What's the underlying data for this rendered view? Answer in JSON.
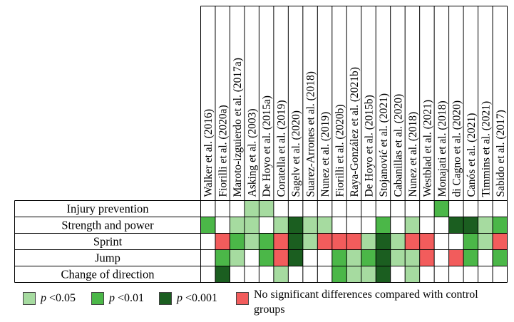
{
  "colors": {
    "p05": "#a6dba0",
    "p01": "#4bb748",
    "p001": "#1b5e20",
    "ns": "#f25c5c",
    "none": "#ffffff"
  },
  "studies": [
    "Walker et al. (2016)",
    "Fiorilli et al. (2020a)",
    "Maroto-izguierdo et al. (2017a)",
    "Asking et al. (2003)",
    "De Hoyo et al. (2015a)",
    "Coratella et al. (2019)",
    "Sagelv et al. (2020)",
    "Suarez-Arrones et al. (2018)",
    "Nunez et al. (2019)",
    "Fiorilli et al. (2020b)",
    "Raya-González et al. (2021b)",
    "De Hoyo et al. (2015b)",
    "Stojanović et al. (2021)",
    "Cabanillas et al. (2020)",
    "Nunez et al. (2018)",
    "Westblad et al. (2021)",
    "Monajati et al. (2018)",
    "di Cagno et al. (2020)",
    "Canós et al. (2021)",
    "Timmins et al. (2021)",
    "Sabido et al. (2017)"
  ],
  "outcomes": [
    {
      "label": "Injury prevention",
      "cells": [
        "",
        "",
        "",
        "p05",
        "p05",
        "",
        "",
        "",
        "",
        "",
        "",
        "",
        "",
        "",
        "",
        "",
        "p01",
        "",
        "",
        "",
        ""
      ]
    },
    {
      "label": "Strength and power",
      "cells": [
        "p01",
        "",
        "p05",
        "p05",
        "",
        "p05",
        "p001",
        "p05",
        "p05",
        "",
        "",
        "",
        "p01",
        "",
        "p05",
        "",
        "",
        "p001",
        "p001",
        "p05",
        "p01"
      ]
    },
    {
      "label": "Sprint",
      "cells": [
        "",
        "ns",
        "p01",
        "p05",
        "p01",
        "ns",
        "p001",
        "p05",
        "ns",
        "ns",
        "ns",
        "p05",
        "p001",
        "p05",
        "ns",
        "ns",
        "",
        "",
        "p01",
        "p05",
        "ns"
      ]
    },
    {
      "label": "Jump",
      "cells": [
        "",
        "p01",
        "p05",
        "",
        "p01",
        "ns",
        "p001",
        "",
        "",
        "p01",
        "p05",
        "p01",
        "p001",
        "p05",
        "p05",
        "ns",
        "",
        "ns",
        "p01",
        "",
        "p01"
      ]
    },
    {
      "label": "Change of direction",
      "cells": [
        "",
        "p001",
        "",
        "",
        "",
        "p05",
        "",
        "",
        "",
        "p01",
        "p05",
        "p05",
        "p001",
        "",
        "p05",
        "",
        "",
        "",
        "",
        "",
        ""
      ]
    }
  ],
  "legend": [
    {
      "key": "p05",
      "symbol": "p",
      "text": " <0.05"
    },
    {
      "key": "p01",
      "symbol": "p",
      "text": " <0.01"
    },
    {
      "key": "p001",
      "symbol": "p",
      "text": " <0.001"
    },
    {
      "key": "ns",
      "text": "No significant differences compared with control groups"
    }
  ]
}
